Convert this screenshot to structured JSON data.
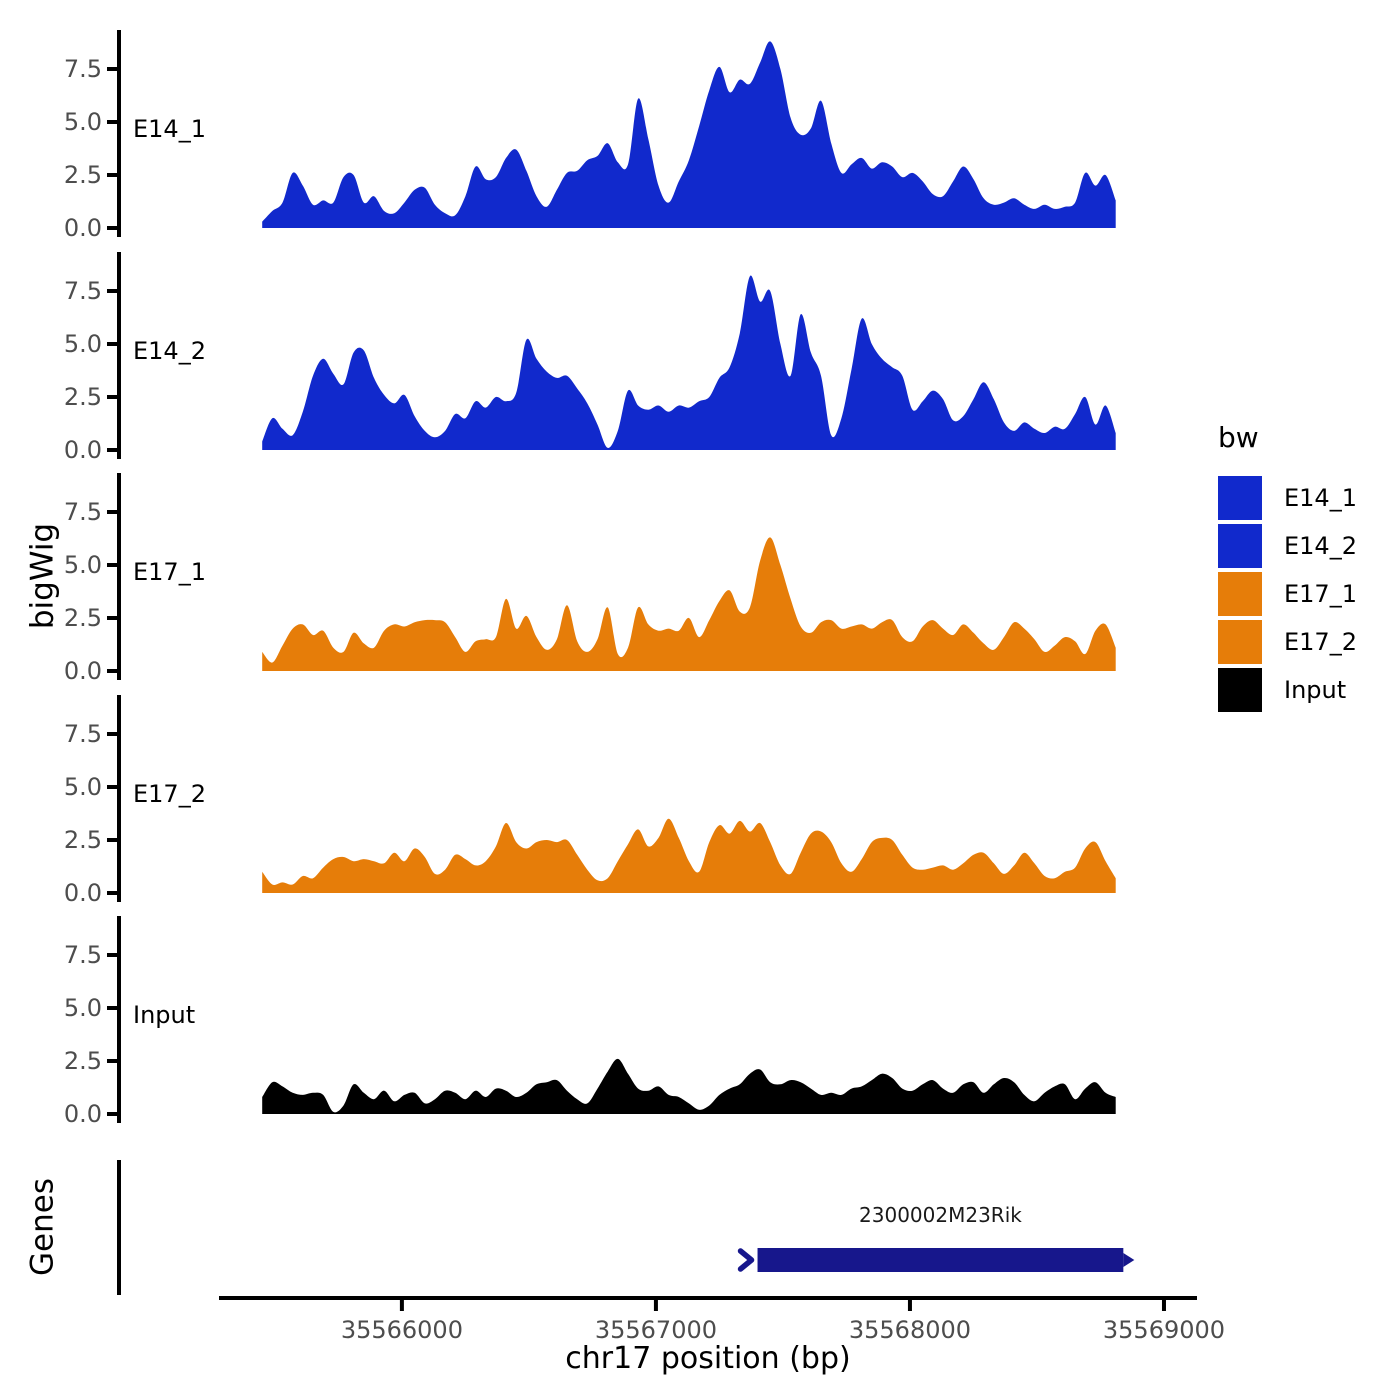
{
  "figure": {
    "background": "#FFFFFF",
    "y_axis_title": "bigWig",
    "genes_title": "Genes",
    "x_axis": {
      "title": "chr17 position (bp)",
      "tick_values": [
        35566000,
        35567000,
        35568000,
        35569000
      ],
      "tick_labels": [
        "35566000",
        "35567000",
        "35568000",
        "35569000"
      ],
      "range": [
        35565280,
        35569130
      ]
    },
    "y_axis": {
      "tick_values": [
        0.0,
        2.5,
        5.0,
        7.5
      ],
      "tick_labels": [
        "0.0",
        "2.5",
        "5.0",
        "7.5"
      ],
      "max": 9.3
    },
    "colors": {
      "axis": "#000000",
      "tick_text": "#4D4D4D",
      "label_text": "#000000"
    }
  },
  "legend": {
    "title": "bw",
    "position": "right",
    "entries": [
      {
        "label": "E14_1",
        "color": "#1129CC"
      },
      {
        "label": "E14_2",
        "color": "#1129CC"
      },
      {
        "label": "E17_1",
        "color": "#E67D09"
      },
      {
        "label": "E17_2",
        "color": "#E67D09"
      },
      {
        "label": "Input",
        "color": "#000000"
      }
    ]
  },
  "genes_panel": {
    "gene": {
      "name": "2300002M23Rik",
      "start": 35567400,
      "end": 35568840,
      "strand": "+",
      "color": "#17178C"
    }
  },
  "chart_data": {
    "type": "area",
    "title": "",
    "xlabel": "chr17 position (bp)",
    "ylabel": "bigWig",
    "faceted": true,
    "facets": [
      "E14_1",
      "E14_2",
      "E17_1",
      "E17_2",
      "Input"
    ],
    "ylim": [
      0,
      9.3
    ],
    "y_ticks": [
      0.0,
      2.5,
      5.0,
      7.5
    ],
    "x_ticks": [
      35566000,
      35567000,
      35568000,
      35569000
    ],
    "x_range_axis": [
      35565280,
      35569130
    ],
    "x_start": 35565450,
    "x_step": 40,
    "grid": false,
    "legend_position": "right",
    "series": [
      {
        "name": "E14_1",
        "color": "#1129CC",
        "values": [
          0.3,
          0.8,
          1.2,
          2.6,
          2.0,
          1.1,
          1.3,
          1.2,
          2.4,
          2.5,
          1.2,
          1.5,
          0.8,
          0.7,
          1.2,
          1.8,
          1.9,
          1.1,
          0.7,
          0.6,
          1.5,
          2.9,
          2.3,
          2.4,
          3.3,
          3.7,
          2.7,
          1.5,
          1.0,
          1.8,
          2.6,
          2.7,
          3.2,
          3.4,
          4.0,
          3.1,
          3.0,
          6.1,
          4.2,
          2.0,
          1.2,
          2.2,
          3.2,
          4.8,
          6.5,
          7.6,
          6.4,
          7.0,
          6.8,
          7.8,
          8.8,
          7.5,
          5.2,
          4.4,
          4.7,
          6.0,
          4.0,
          2.6,
          3.0,
          3.3,
          2.8,
          3.1,
          2.9,
          2.4,
          2.6,
          2.2,
          1.6,
          1.5,
          2.2,
          2.9,
          2.3,
          1.4,
          1.1,
          1.2,
          1.4,
          1.1,
          0.9,
          1.1,
          0.9,
          1.0,
          1.2,
          2.6,
          2.0,
          2.5,
          1.3
        ]
      },
      {
        "name": "E14_2",
        "color": "#1129CC",
        "values": [
          0.4,
          1.5,
          1.0,
          0.7,
          1.8,
          3.5,
          4.3,
          3.6,
          3.1,
          4.6,
          4.7,
          3.4,
          2.6,
          2.2,
          2.6,
          1.6,
          0.9,
          0.6,
          0.9,
          1.7,
          1.5,
          2.3,
          2.0,
          2.5,
          2.3,
          2.7,
          5.2,
          4.3,
          3.7,
          3.4,
          3.5,
          2.9,
          2.2,
          1.2,
          0.1,
          0.9,
          2.8,
          2.1,
          1.9,
          2.1,
          1.8,
          2.1,
          2.0,
          2.3,
          2.5,
          3.4,
          3.9,
          5.5,
          8.2,
          7.0,
          7.5,
          5.0,
          3.5,
          6.4,
          4.6,
          3.5,
          0.7,
          1.5,
          3.8,
          6.2,
          5.0,
          4.3,
          3.9,
          3.5,
          1.9,
          2.3,
          2.8,
          2.4,
          1.4,
          1.6,
          2.4,
          3.2,
          2.4,
          1.3,
          0.9,
          1.3,
          1.0,
          0.8,
          1.1,
          1.0,
          1.7,
          2.5,
          1.2,
          2.1,
          0.8
        ]
      },
      {
        "name": "E17_1",
        "color": "#E67D09",
        "values": [
          0.9,
          0.4,
          1.2,
          2.0,
          2.2,
          1.7,
          1.9,
          1.1,
          0.9,
          1.8,
          1.3,
          1.1,
          1.9,
          2.2,
          2.1,
          2.3,
          2.4,
          2.4,
          2.3,
          1.6,
          0.9,
          1.4,
          1.5,
          1.6,
          3.4,
          2.0,
          2.6,
          1.6,
          1.0,
          1.5,
          3.1,
          1.4,
          0.9,
          1.5,
          3.0,
          0.8,
          1.1,
          3.0,
          2.2,
          1.9,
          2.0,
          1.9,
          2.5,
          1.6,
          2.4,
          3.3,
          3.8,
          2.8,
          3.0,
          5.2,
          6.3,
          5.0,
          3.4,
          2.1,
          1.8,
          2.3,
          2.4,
          2.0,
          2.1,
          2.2,
          2.0,
          2.3,
          2.4,
          1.6,
          1.4,
          2.1,
          2.4,
          2.0,
          1.7,
          2.2,
          1.8,
          1.3,
          1.0,
          1.6,
          2.3,
          2.0,
          1.5,
          0.9,
          1.2,
          1.6,
          1.4,
          0.8,
          1.9,
          2.2,
          1.1
        ]
      },
      {
        "name": "E17_2",
        "color": "#E67D09",
        "values": [
          1.0,
          0.4,
          0.5,
          0.4,
          0.8,
          0.7,
          1.2,
          1.6,
          1.7,
          1.5,
          1.6,
          1.5,
          1.4,
          1.9,
          1.5,
          2.1,
          1.7,
          0.9,
          1.1,
          1.8,
          1.6,
          1.3,
          1.5,
          2.2,
          3.3,
          2.4,
          2.1,
          2.4,
          2.5,
          2.4,
          2.5,
          1.8,
          1.1,
          0.6,
          0.7,
          1.5,
          2.3,
          3.0,
          2.2,
          2.6,
          3.5,
          2.6,
          1.5,
          1.0,
          2.4,
          3.2,
          2.8,
          3.4,
          2.9,
          3.3,
          2.4,
          1.3,
          0.9,
          1.9,
          2.8,
          2.9,
          2.4,
          1.4,
          1.0,
          1.6,
          2.4,
          2.6,
          2.5,
          1.8,
          1.2,
          1.1,
          1.2,
          1.3,
          1.1,
          1.4,
          1.8,
          1.9,
          1.4,
          0.9,
          1.3,
          1.9,
          1.4,
          0.8,
          0.7,
          1.0,
          1.2,
          2.1,
          2.4,
          1.5,
          0.7
        ]
      },
      {
        "name": "Input",
        "color": "#000000",
        "values": [
          0.8,
          1.5,
          1.3,
          1.0,
          0.9,
          1.0,
          0.9,
          0.1,
          0.4,
          1.4,
          1.0,
          0.7,
          1.1,
          0.6,
          0.9,
          1.0,
          0.5,
          0.7,
          1.1,
          1.0,
          0.7,
          1.1,
          0.8,
          1.2,
          1.1,
          0.8,
          1.0,
          1.4,
          1.5,
          1.6,
          1.1,
          0.7,
          0.5,
          1.2,
          2.0,
          2.6,
          1.9,
          1.2,
          1.1,
          1.3,
          0.9,
          0.8,
          0.5,
          0.2,
          0.4,
          0.9,
          1.2,
          1.4,
          1.9,
          2.1,
          1.5,
          1.4,
          1.6,
          1.5,
          1.2,
          0.9,
          1.0,
          0.9,
          1.2,
          1.3,
          1.6,
          1.9,
          1.7,
          1.2,
          1.1,
          1.4,
          1.6,
          1.2,
          1.0,
          1.4,
          1.5,
          1.0,
          1.4,
          1.7,
          1.5,
          0.9,
          0.6,
          1.0,
          1.3,
          1.4,
          0.7,
          1.2,
          1.5,
          1.0,
          0.8
        ]
      }
    ]
  }
}
